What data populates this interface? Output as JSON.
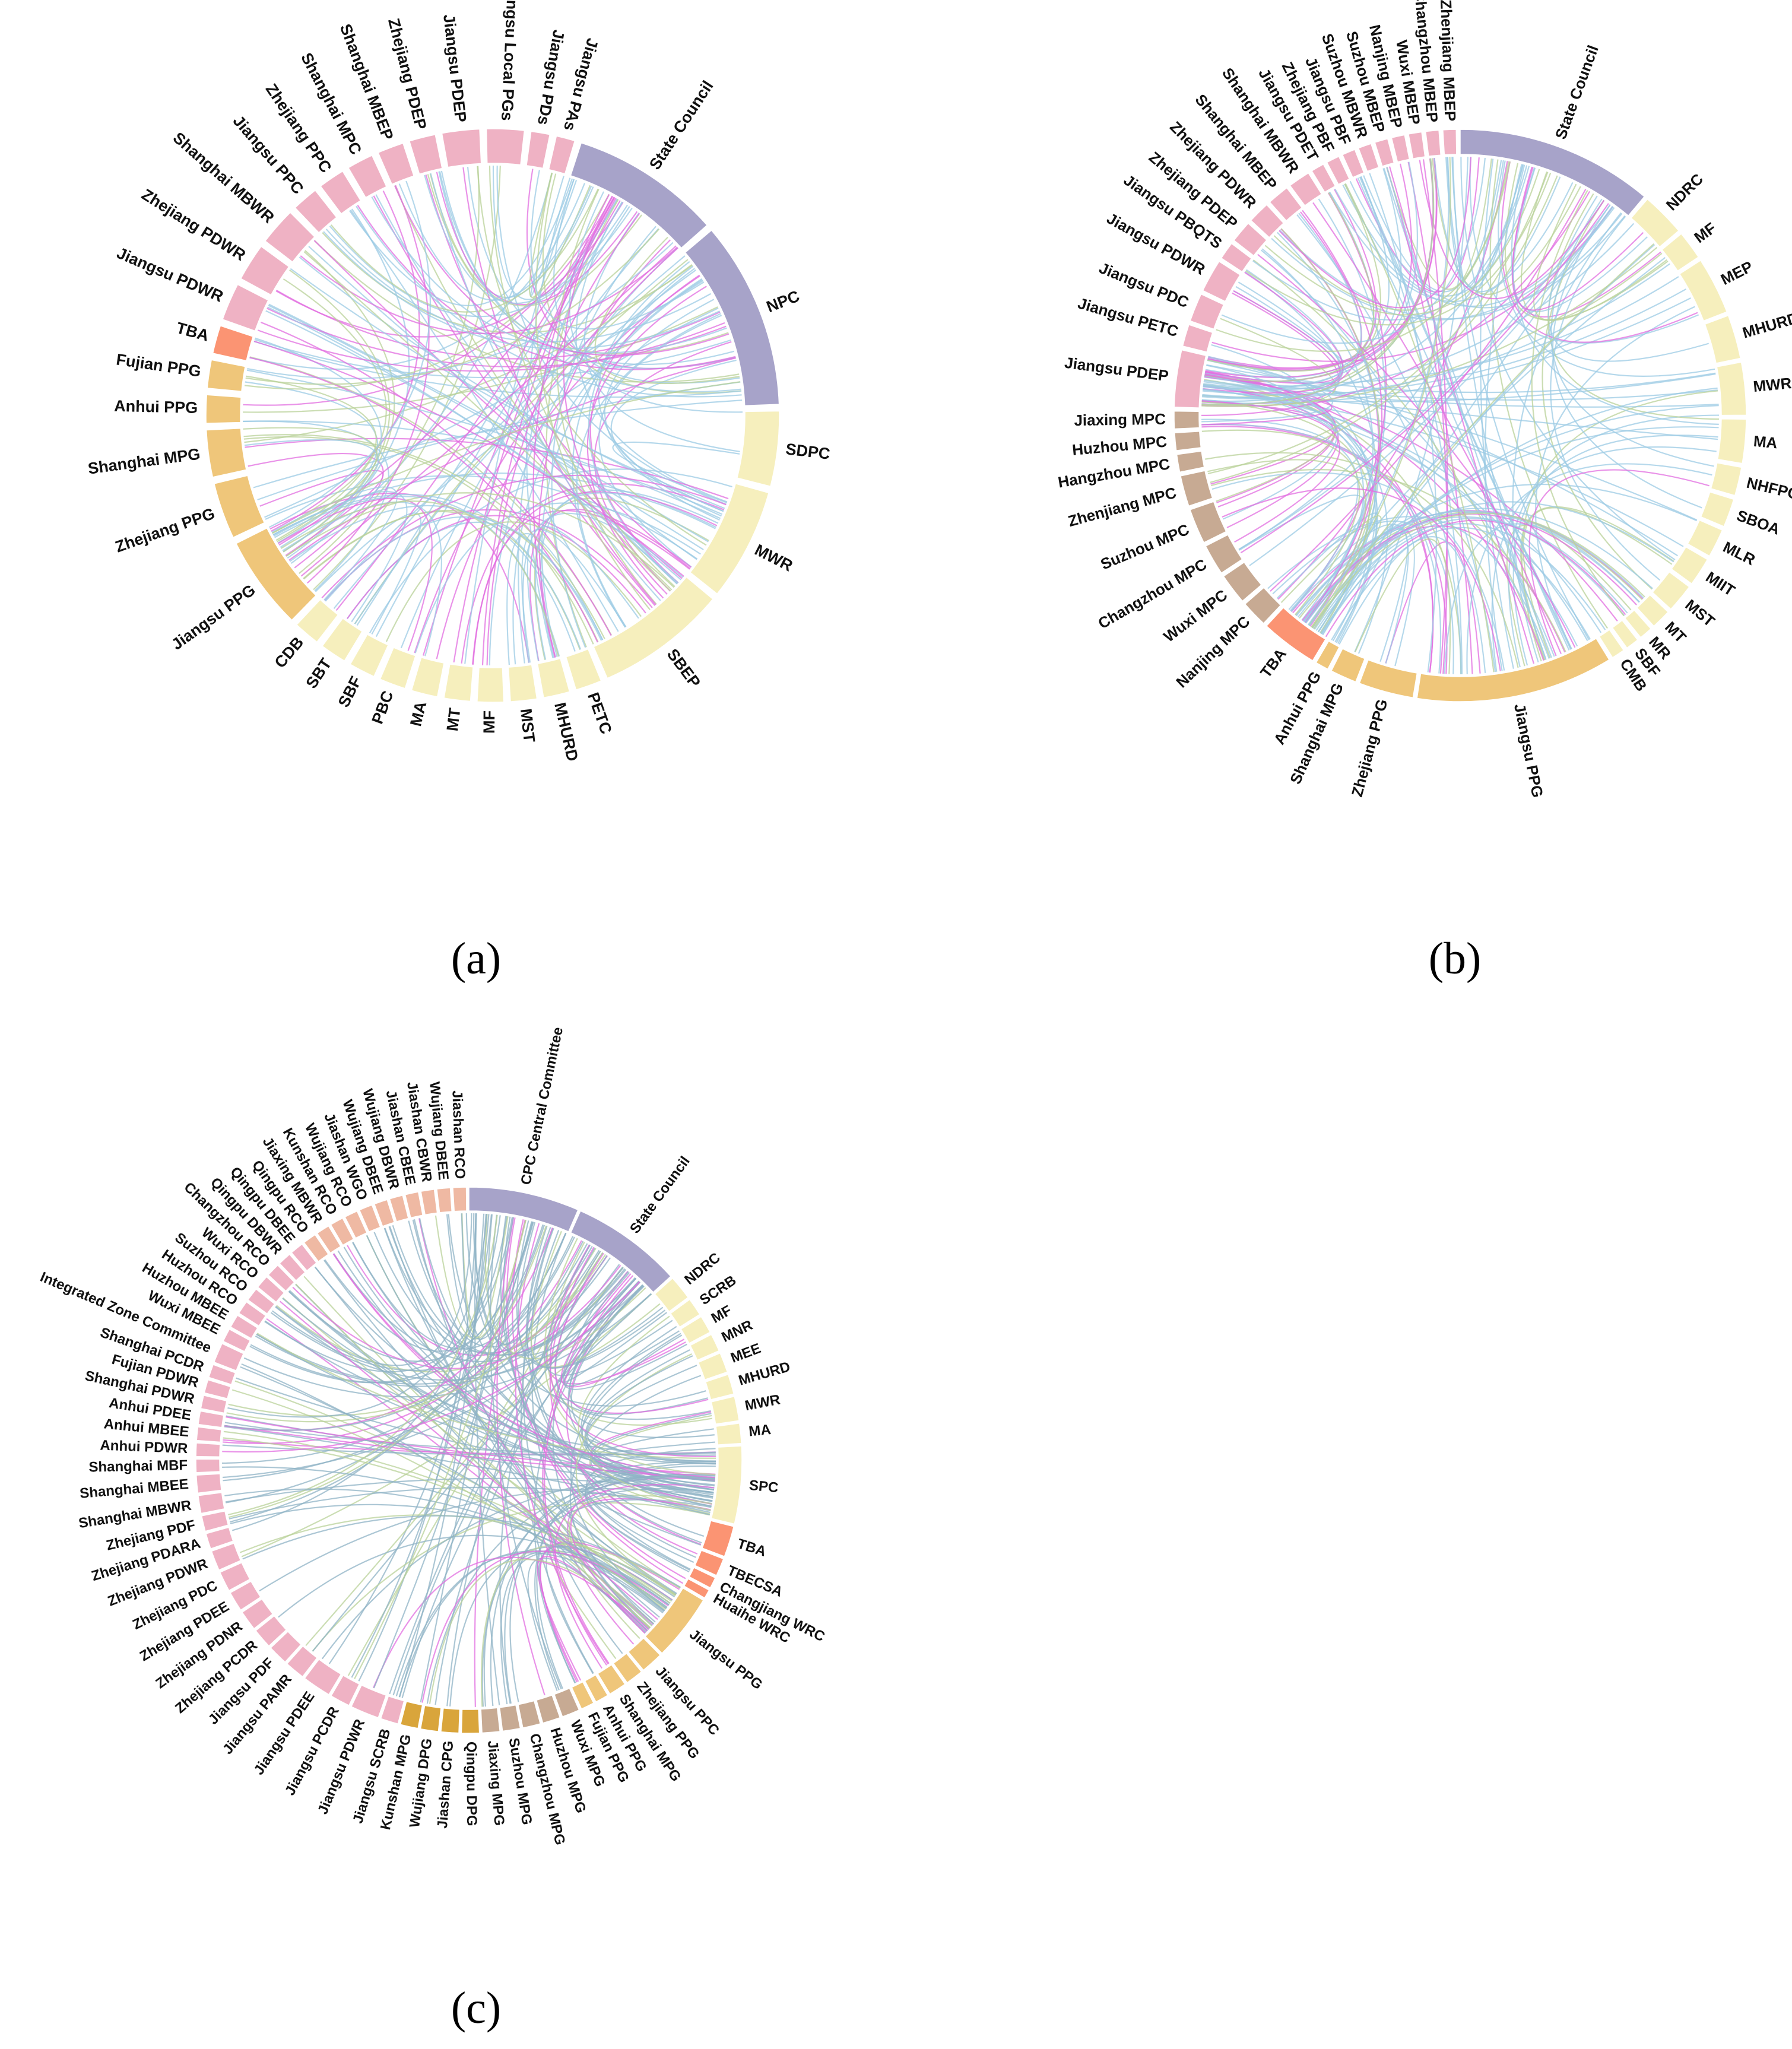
{
  "colors": {
    "chord_blue": "#9ccbe4",
    "chord_pink": "#e26ee0",
    "chord_green": "#b9d19a",
    "chord_steel": "#8fb3c6",
    "central_purple": "#a7a3c9",
    "ministry_yellow": "#f6efbd",
    "commission_red": "#fb9473",
    "provincial_orange": "#efc67a",
    "municipal_tan": "#c7aa93",
    "department_pink": "#efb2c4",
    "county_gold": "#d9a53b",
    "rco_salmon": "#efb9a3"
  },
  "panels": [
    {
      "id": "a",
      "label": "(a)",
      "nodes": [
        {
          "name": "State Council",
          "w": 8,
          "c": "central_purple"
        },
        {
          "name": "NPC",
          "w": 10,
          "c": "central_purple"
        },
        {
          "name": "SDPC",
          "w": 4,
          "c": "ministry_yellow"
        },
        {
          "name": "MWR",
          "w": 6,
          "c": "ministry_yellow"
        },
        {
          "name": "SBEP",
          "w": 7,
          "c": "ministry_yellow"
        },
        {
          "name": "PETC",
          "w": 1.4,
          "c": "ministry_yellow"
        },
        {
          "name": "MHURD",
          "w": 1.4,
          "c": "ministry_yellow"
        },
        {
          "name": "MST",
          "w": 1.4,
          "c": "ministry_yellow"
        },
        {
          "name": "MF",
          "w": 1.4,
          "c": "ministry_yellow"
        },
        {
          "name": "MT",
          "w": 1.4,
          "c": "ministry_yellow"
        },
        {
          "name": "MA",
          "w": 1.4,
          "c": "ministry_yellow"
        },
        {
          "name": "PBC",
          "w": 1.4,
          "c": "ministry_yellow"
        },
        {
          "name": "SBF",
          "w": 1.4,
          "c": "ministry_yellow"
        },
        {
          "name": "SBT",
          "w": 1.4,
          "c": "ministry_yellow"
        },
        {
          "name": "CDB",
          "w": 1.4,
          "c": "ministry_yellow"
        },
        {
          "name": "Jiangsu PPG",
          "w": 5,
          "c": "provincial_orange"
        },
        {
          "name": "Zhejiang PPG",
          "w": 3,
          "c": "provincial_orange"
        },
        {
          "name": "Shanghai MPG",
          "w": 2.5,
          "c": "provincial_orange"
        },
        {
          "name": "Anhui PPG",
          "w": 1.5,
          "c": "provincial_orange"
        },
        {
          "name": "Fujian PPG",
          "w": 1.5,
          "c": "provincial_orange"
        },
        {
          "name": "TBA",
          "w": 1.5,
          "c": "commission_red"
        },
        {
          "name": "Jiangsu PDWR",
          "w": 2,
          "c": "department_pink"
        },
        {
          "name": "Zhejiang PDWR",
          "w": 2,
          "c": "department_pink"
        },
        {
          "name": "Shanghai MBWR",
          "w": 2,
          "c": "department_pink"
        },
        {
          "name": "Jiangsu PPC",
          "w": 1.4,
          "c": "department_pink"
        },
        {
          "name": "Zhejiang PPC",
          "w": 1.4,
          "c": "department_pink"
        },
        {
          "name": "Shanghai MPC",
          "w": 1.4,
          "c": "department_pink"
        },
        {
          "name": "Shanghai MBEP",
          "w": 1.4,
          "c": "department_pink"
        },
        {
          "name": "Zhejiang PDEP",
          "w": 1.4,
          "c": "department_pink"
        },
        {
          "name": "Jiangsu PDEP",
          "w": 2,
          "c": "department_pink"
        },
        {
          "name": "Jiangsu Local PGs",
          "w": 2,
          "c": "department_pink"
        },
        {
          "name": "Jiangsu PDs",
          "w": 1,
          "c": "department_pink"
        },
        {
          "name": "Jiangsu PAs",
          "w": 1,
          "c": "department_pink"
        }
      ]
    },
    {
      "id": "b",
      "label": "(b)",
      "nodes": [
        {
          "name": "State Council",
          "w": 9,
          "c": "central_purple"
        },
        {
          "name": "NDRC",
          "w": 2,
          "c": "ministry_yellow"
        },
        {
          "name": "MF",
          "w": 1.3,
          "c": "ministry_yellow"
        },
        {
          "name": "MEP",
          "w": 2.6,
          "c": "ministry_yellow"
        },
        {
          "name": "MHURD",
          "w": 2,
          "c": "ministry_yellow"
        },
        {
          "name": "MWR",
          "w": 2.4,
          "c": "ministry_yellow"
        },
        {
          "name": "MA",
          "w": 2,
          "c": "ministry_yellow"
        },
        {
          "name": "NHFPC",
          "w": 1.3,
          "c": "ministry_yellow"
        },
        {
          "name": "SBOA",
          "w": 1.3,
          "c": "ministry_yellow"
        },
        {
          "name": "MLR",
          "w": 1.3,
          "c": "ministry_yellow"
        },
        {
          "name": "MIIT",
          "w": 1.3,
          "c": "ministry_yellow"
        },
        {
          "name": "MST",
          "w": 1.3,
          "c": "ministry_yellow"
        },
        {
          "name": "MT",
          "w": 0.9,
          "c": "ministry_yellow"
        },
        {
          "name": "MR",
          "w": 0.6,
          "c": "ministry_yellow"
        },
        {
          "name": "SBF",
          "w": 0.6,
          "c": "ministry_yellow"
        },
        {
          "name": "CMB",
          "w": 0.6,
          "c": "ministry_yellow"
        },
        {
          "name": "Jiangsu PPG",
          "w": 9,
          "c": "provincial_orange"
        },
        {
          "name": "Zhejiang PPG",
          "w": 2.5,
          "c": "provincial_orange"
        },
        {
          "name": "Shanghai MPG",
          "w": 1.2,
          "c": "provincial_orange"
        },
        {
          "name": "Anhui PPG",
          "w": 0.6,
          "c": "provincial_orange"
        },
        {
          "name": "TBA",
          "w": 2.6,
          "c": "commission_red"
        },
        {
          "name": "Nanjing MPC",
          "w": 1.2,
          "c": "municipal_tan"
        },
        {
          "name": "Wuxi MPC",
          "w": 1.4,
          "c": "municipal_tan"
        },
        {
          "name": "Changzhou MPC",
          "w": 1.4,
          "c": "municipal_tan"
        },
        {
          "name": "Suzhou MPC",
          "w": 1.6,
          "c": "municipal_tan"
        },
        {
          "name": "Zhenjiang MPC",
          "w": 1.4,
          "c": "municipal_tan"
        },
        {
          "name": "Hangzhou MPC",
          "w": 0.8,
          "c": "municipal_tan"
        },
        {
          "name": "Huzhou MPC",
          "w": 0.8,
          "c": "municipal_tan"
        },
        {
          "name": "Jiaxing MPC",
          "w": 0.8,
          "c": "municipal_tan"
        },
        {
          "name": "Jiangsu PDEP",
          "w": 2.6,
          "c": "department_pink"
        },
        {
          "name": "Jiangsu PETC",
          "w": 1,
          "c": "department_pink"
        },
        {
          "name": "Jiangsu PDC",
          "w": 1.3,
          "c": "department_pink"
        },
        {
          "name": "Jiangsu PDWR",
          "w": 1.5,
          "c": "department_pink"
        },
        {
          "name": "Jiangsu PBQTS",
          "w": 0.8,
          "c": "department_pink"
        },
        {
          "name": "Zhejiang PDEP",
          "w": 1,
          "c": "department_pink"
        },
        {
          "name": "Zhejiang PDWR",
          "w": 1,
          "c": "department_pink"
        },
        {
          "name": "Shanghai MBEP",
          "w": 1,
          "c": "department_pink"
        },
        {
          "name": "Shanghai MBWR",
          "w": 1,
          "c": "department_pink"
        },
        {
          "name": "Jiangsu PDET",
          "w": 0.6,
          "c": "department_pink"
        },
        {
          "name": "Zhejiang PBF",
          "w": 0.6,
          "c": "department_pink"
        },
        {
          "name": "Jiangsu PBF",
          "w": 0.6,
          "c": "department_pink"
        },
        {
          "name": "Suzhou MBWR",
          "w": 0.6,
          "c": "department_pink"
        },
        {
          "name": "Suzhou MBEP",
          "w": 0.6,
          "c": "department_pink"
        },
        {
          "name": "Nanjing MBEP",
          "w": 0.6,
          "c": "department_pink"
        },
        {
          "name": "Wuxi MBEP",
          "w": 0.6,
          "c": "department_pink"
        },
        {
          "name": "Changzhou MBEP",
          "w": 0.6,
          "c": "department_pink"
        },
        {
          "name": "Zhenjiang MBEP",
          "w": 0.6,
          "c": "department_pink"
        }
      ]
    },
    {
      "id": "c",
      "label": "(c)",
      "nodes": [
        {
          "name": "CPC Central Committee",
          "w": 5,
          "c": "central_purple"
        },
        {
          "name": "State Council",
          "w": 5,
          "c": "central_purple"
        },
        {
          "name": "NDRC",
          "w": 1.1,
          "c": "ministry_yellow"
        },
        {
          "name": "SCRB",
          "w": 0.8,
          "c": "ministry_yellow"
        },
        {
          "name": "MF",
          "w": 0.8,
          "c": "ministry_yellow"
        },
        {
          "name": "MNR",
          "w": 0.8,
          "c": "ministry_yellow"
        },
        {
          "name": "MEE",
          "w": 0.9,
          "c": "ministry_yellow"
        },
        {
          "name": "MHURD",
          "w": 0.9,
          "c": "ministry_yellow"
        },
        {
          "name": "MWR",
          "w": 1.1,
          "c": "ministry_yellow"
        },
        {
          "name": "MA",
          "w": 0.9,
          "c": "ministry_yellow"
        },
        {
          "name": "SPC",
          "w": 3.5,
          "c": "ministry_yellow"
        },
        {
          "name": "TBA",
          "w": 1.4,
          "c": "commission_red"
        },
        {
          "name": "TBECSA",
          "w": 0.8,
          "c": "commission_red"
        },
        {
          "name": "Changjiang WRC",
          "w": 0.5,
          "c": "commission_red"
        },
        {
          "name": "Huaihe WRC",
          "w": 0.4,
          "c": "commission_red"
        },
        {
          "name": "Jiangsu PPG",
          "w": 3,
          "c": "provincial_orange"
        },
        {
          "name": "Jiangsu PPC",
          "w": 1,
          "c": "provincial_orange"
        },
        {
          "name": "Zhejiang PPG",
          "w": 0.8,
          "c": "provincial_orange"
        },
        {
          "name": "Shanghai MPG",
          "w": 0.8,
          "c": "provincial_orange"
        },
        {
          "name": "Anhui PPG",
          "w": 0.6,
          "c": "provincial_orange"
        },
        {
          "name": "Fujian PPG",
          "w": 0.6,
          "c": "provincial_orange"
        },
        {
          "name": "Wuxi MPG",
          "w": 0.8,
          "c": "municipal_tan"
        },
        {
          "name": "Huzhou MPG",
          "w": 0.8,
          "c": "municipal_tan"
        },
        {
          "name": "Changzhou MPG",
          "w": 0.8,
          "c": "municipal_tan"
        },
        {
          "name": "Suzhou MPG",
          "w": 0.8,
          "c": "municipal_tan"
        },
        {
          "name": "Jiaxing MPG",
          "w": 0.8,
          "c": "municipal_tan"
        },
        {
          "name": "Qingpu DPG",
          "w": 0.8,
          "c": "county_gold"
        },
        {
          "name": "Jiashan CPG",
          "w": 0.8,
          "c": "county_gold"
        },
        {
          "name": "Wujiang DPG",
          "w": 0.8,
          "c": "county_gold"
        },
        {
          "name": "Kunshan MPG",
          "w": 0.8,
          "c": "county_gold"
        },
        {
          "name": "Jiangsu SCRB",
          "w": 0.8,
          "c": "department_pink"
        },
        {
          "name": "Jiangsu PDWR",
          "w": 1.3,
          "c": "department_pink"
        },
        {
          "name": "Jiangsu PCDR",
          "w": 0.9,
          "c": "department_pink"
        },
        {
          "name": "Jiangsu PDEE",
          "w": 1.3,
          "c": "department_pink"
        },
        {
          "name": "Jiangsu PAMR",
          "w": 0.9,
          "c": "department_pink"
        },
        {
          "name": "Jiangsu PDF",
          "w": 0.9,
          "c": "department_pink"
        },
        {
          "name": "Zhejiang PCDR",
          "w": 0.9,
          "c": "department_pink"
        },
        {
          "name": "Zhejiang PDNR",
          "w": 0.9,
          "c": "department_pink"
        },
        {
          "name": "Zhejiang PDEE",
          "w": 0.9,
          "c": "department_pink"
        },
        {
          "name": "Zhejiang PDC",
          "w": 0.9,
          "c": "department_pink"
        },
        {
          "name": "Zhejiang PDWR",
          "w": 0.9,
          "c": "department_pink"
        },
        {
          "name": "Zhejiang PDARA",
          "w": 0.7,
          "c": "department_pink"
        },
        {
          "name": "Zhejiang PDF",
          "w": 0.7,
          "c": "department_pink"
        },
        {
          "name": "Shanghai MBWR",
          "w": 0.8,
          "c": "department_pink"
        },
        {
          "name": "Shanghai MBEE",
          "w": 0.8,
          "c": "department_pink"
        },
        {
          "name": "Shanghai MBF",
          "w": 0.6,
          "c": "department_pink"
        },
        {
          "name": "Anhui PDWR",
          "w": 0.6,
          "c": "department_pink"
        },
        {
          "name": "Anhui MBEE",
          "w": 0.6,
          "c": "department_pink"
        },
        {
          "name": "Anhui PDEE",
          "w": 0.6,
          "c": "department_pink"
        },
        {
          "name": "Shanghai PDWR",
          "w": 0.6,
          "c": "department_pink"
        },
        {
          "name": "Fujian PDWR",
          "w": 0.6,
          "c": "department_pink"
        },
        {
          "name": "Shanghai PCDR",
          "w": 0.6,
          "c": "department_pink"
        },
        {
          "name": "Integrated Zone Committee",
          "w": 0.9,
          "c": "department_pink"
        },
        {
          "name": "Wuxi MBEE",
          "w": 0.6,
          "c": "department_pink"
        },
        {
          "name": "Huzhou MBEE",
          "w": 0.6,
          "c": "department_pink"
        },
        {
          "name": "Huzhou RCO",
          "w": 0.6,
          "c": "department_pink"
        },
        {
          "name": "Suzhou RCO",
          "w": 0.6,
          "c": "department_pink"
        },
        {
          "name": "Wuxi RCO",
          "w": 0.6,
          "c": "department_pink"
        },
        {
          "name": "Changzhou RCO",
          "w": 0.6,
          "c": "department_pink"
        },
        {
          "name": "Qingpu DBWR",
          "w": 0.6,
          "c": "department_pink"
        },
        {
          "name": "Qingpu DBEE",
          "w": 0.6,
          "c": "department_pink"
        },
        {
          "name": "Qingpu RCO",
          "w": 0.6,
          "c": "rco_salmon"
        },
        {
          "name": "Jiaxing MBWR",
          "w": 0.6,
          "c": "rco_salmon"
        },
        {
          "name": "Kunshan RCO",
          "w": 0.6,
          "c": "rco_salmon"
        },
        {
          "name": "Wujiang RCO",
          "w": 0.6,
          "c": "rco_salmon"
        },
        {
          "name": "Jiashan WGO",
          "w": 0.6,
          "c": "rco_salmon"
        },
        {
          "name": "Wujiang DBEE",
          "w": 0.6,
          "c": "rco_salmon"
        },
        {
          "name": "Wujiang DBWR",
          "w": 0.6,
          "c": "rco_salmon"
        },
        {
          "name": "Jiashan CBEE",
          "w": 0.6,
          "c": "rco_salmon"
        },
        {
          "name": "Jiashan CBWR",
          "w": 0.6,
          "c": "rco_salmon"
        },
        {
          "name": "Wujiang DBEE",
          "w": 0.6,
          "c": "rco_salmon"
        },
        {
          "name": "Jiashan RCO",
          "w": 0.6,
          "c": "rco_salmon"
        }
      ]
    }
  ]
}
